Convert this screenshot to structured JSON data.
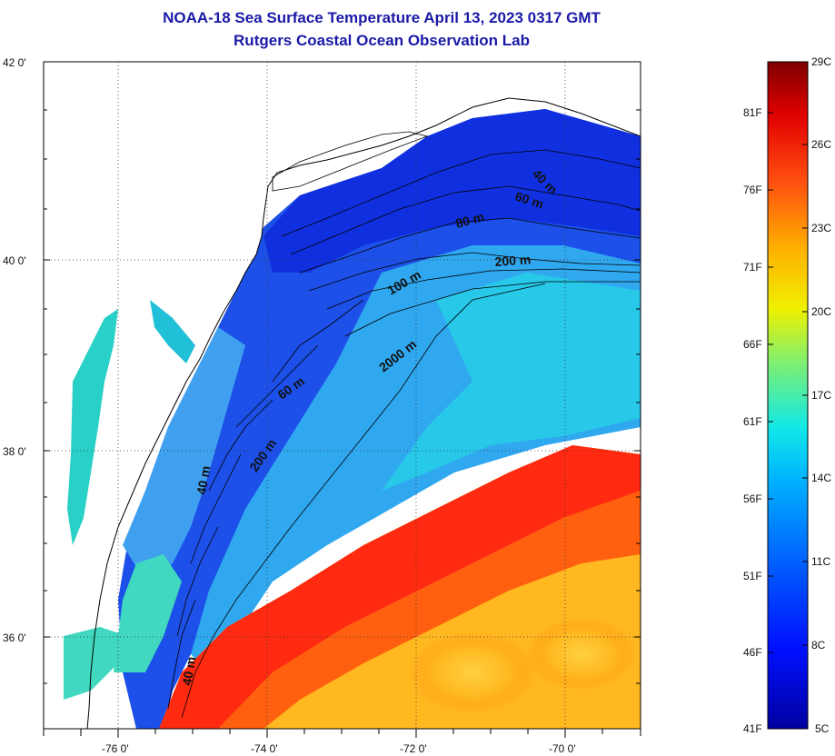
{
  "title": "NOAA-18 Sea Surface Temperature April 13, 2023 0317 GMT",
  "subtitle": "Rutgers Coastal Ocean Observation Lab",
  "map": {
    "lat_labels": [
      "42 0'",
      "40 0'",
      "38 0'",
      "36 0'"
    ],
    "lon_labels": [
      "-76 0'",
      "-74 0'",
      "-72 0'",
      "-70 0'"
    ],
    "contour_labels": [
      "40 m",
      "60 m",
      "80 m",
      "200 m",
      "100 m",
      "2000 m",
      "60 m",
      "200 m",
      "40 m",
      "40 m"
    ],
    "colors": {
      "land": "#ffffff",
      "cold": "#1030e0",
      "mid": "#18d8e8",
      "warm": "#ff2a10",
      "warmer": "#ffb000"
    }
  },
  "colorbar": {
    "celsius": [
      "29C",
      "26C",
      "23C",
      "20C",
      "17C",
      "14C",
      "11C",
      "8C",
      "5C"
    ],
    "fahrenheit": [
      "81F",
      "76F",
      "71F",
      "66F",
      "61F",
      "56F",
      "51F",
      "46F",
      "41F"
    ],
    "range_c": [
      5,
      29
    ]
  }
}
